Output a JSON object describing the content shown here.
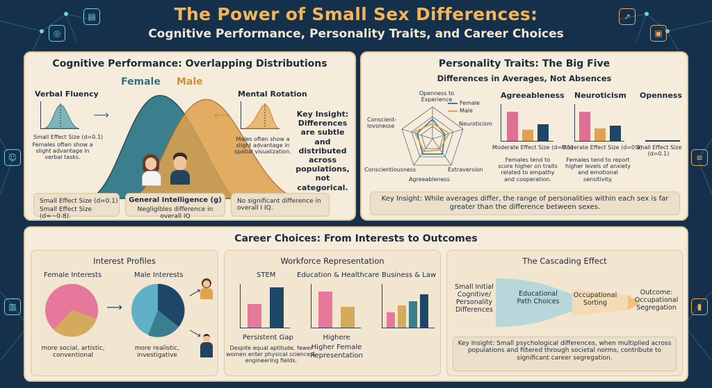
{
  "header": {
    "title": "The Power of Small Sex Differences:",
    "subtitle": "Cognitive Performance, Personality Traits, and Career Choices"
  },
  "cognitive": {
    "title": "Cognitive Performance: Overlapping Distributions",
    "female_label": "Female",
    "male_label": "Male",
    "verbal": {
      "title": "Verbal Fluency",
      "effect": "Small Effect Size (d=0.1)",
      "note": "Females often show a slight advantage in verbal tasks."
    },
    "mental": {
      "title": "Mental Rotation",
      "note": "Males often show a slight advantage in spatial visualization."
    },
    "insight": "Key Insight: Differences are subtle and distributed across populations, not categorical.",
    "box1": {
      "line1": "Small Effect Size (d=0.1)",
      "line2": "Small Effect Size (d≈~0.8)."
    },
    "box2": {
      "title": "General Intelligence (g)",
      "text": "Negligibles difference in overall IQ"
    },
    "box3": "No significant difference in overall I IQ.",
    "colors": {
      "female": "#3b7f8f",
      "male": "#e0a24e"
    }
  },
  "personality": {
    "title": "Personality Traits: The Big Five",
    "subtitle": "Differences in Averages, Not Absences",
    "radar_labels": [
      "Openness to Experience",
      "Neuroticism",
      "Extraversion",
      "Agreeableness",
      "Conscientiousness",
      "Conscient- lovsnesse"
    ],
    "legend": [
      "Female",
      "Male"
    ],
    "agree": {
      "title": "Agreeableness",
      "effect": "Moderate Effect Size (d=0.5)",
      "note": "Females tend to score higher on traits related to empathy and cooperation."
    },
    "neuro": {
      "title": "Neuroticism",
      "effect": "Moderate Effect Size (d=0.4)",
      "note": "Females tend to report higher levels of anxiety and emotional sensitivity."
    },
    "open": {
      "title": "Openness",
      "effect": "Small Effect Size (d=0.1)"
    },
    "insight": "Key Insight: While averages differ, the range of personalities within each sex is far greater than the difference between sexes."
  },
  "career": {
    "title": "Career Choices: From Interests to Outcomes",
    "interest": {
      "title": "Interest Profiles",
      "female": "Female Interests",
      "male": "Male Interests",
      "female_note": "more social, artistic, conventional",
      "male_note": "more realistic, investigative"
    },
    "workforce": {
      "title": "Workforce Representation",
      "stem": "STEM",
      "edu": "Education & Healthcare",
      "biz": "Business & Law",
      "gap": "Persistent Gap",
      "gap_note": "Despite equal aptitude, fewer women enter physical science & engineering fields.",
      "higher1": "Highere",
      "higher2": "Higher Female Representation"
    },
    "cascade": {
      "title": "The Cascading Effect",
      "step1": "Small Initial Cognitive/ Personality Differences",
      "step2": "Educational Path Choices",
      "step3": "Occupational Sorting",
      "step4": "Outcome: Occupational Segregation",
      "insight": "Key Insight: Small psychological differences, when multiplied across populations and filtered through societal norms, contribute to significant career segregation."
    }
  }
}
